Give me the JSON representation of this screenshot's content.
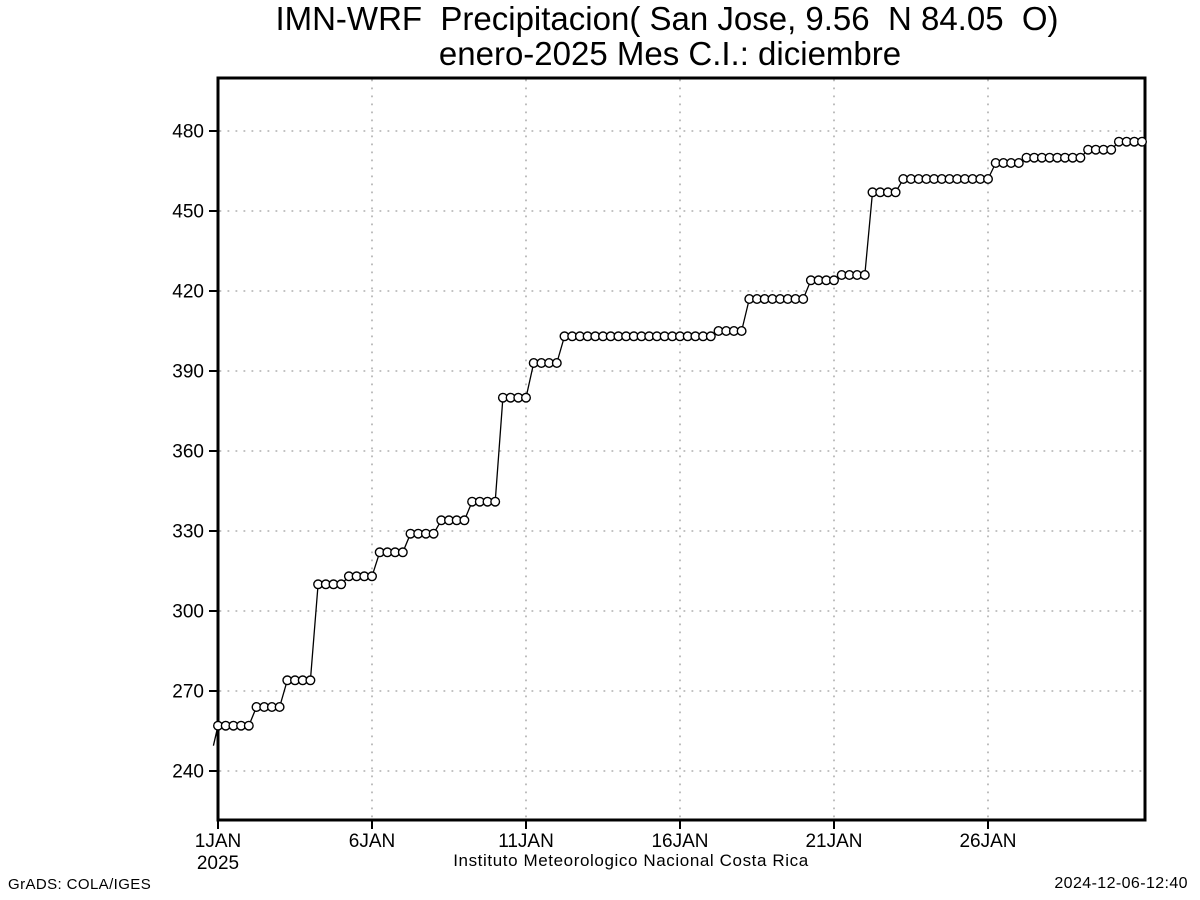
{
  "header": {
    "title": "IMN-WRF  Precipitacion( San Jose, 9.56  N 84.05  O)",
    "subtitle": "enero-2025 Mes C.I.: diciembre"
  },
  "footer": {
    "caption": "Instituto Meteorologico Nacional Costa Rica",
    "credit": "GrADS: COLA/IGES",
    "timestamp": "2024-12-06-12:40"
  },
  "colors": {
    "line": "#000000",
    "marker_fill": "#ffffff",
    "grid": "#adadad",
    "background": "#ffffff",
    "text": "#000000"
  },
  "chart_data": {
    "type": "line",
    "marker": "open-circle",
    "title": "IMN-WRF Precipitacion( San Jose, 9.56 N 84.05 O)",
    "subtitle": "enero-2025 Mes C.I.: diciembre",
    "xlabel": "Instituto Meteorologico Nacional Costa Rica",
    "ylabel": "",
    "grid": true,
    "x_axis": {
      "tick_labels": [
        "1JAN",
        "6JAN",
        "11JAN",
        "16JAN",
        "21JAN",
        "26JAN"
      ],
      "tick_days": [
        1,
        6,
        11,
        16,
        21,
        26
      ],
      "year_label": "2025",
      "range_days": [
        1,
        31.1
      ]
    },
    "y_axis": {
      "tick_values": [
        240,
        270,
        300,
        330,
        360,
        390,
        420,
        450,
        480
      ],
      "range": [
        221,
        500
      ]
    },
    "sampling": "6-hourly cumulative precipitation, 4 points per day plus initial 1JAN 00Z point",
    "initial_point": {
      "day": 1.0,
      "value": 257
    },
    "daily_values": [
      257,
      264,
      274,
      310,
      313,
      322,
      329,
      334,
      341,
      380,
      393,
      403,
      403,
      403,
      403,
      403,
      405,
      417,
      417,
      424,
      426,
      457,
      462,
      462,
      462,
      468,
      470,
      470,
      473,
      476
    ]
  }
}
